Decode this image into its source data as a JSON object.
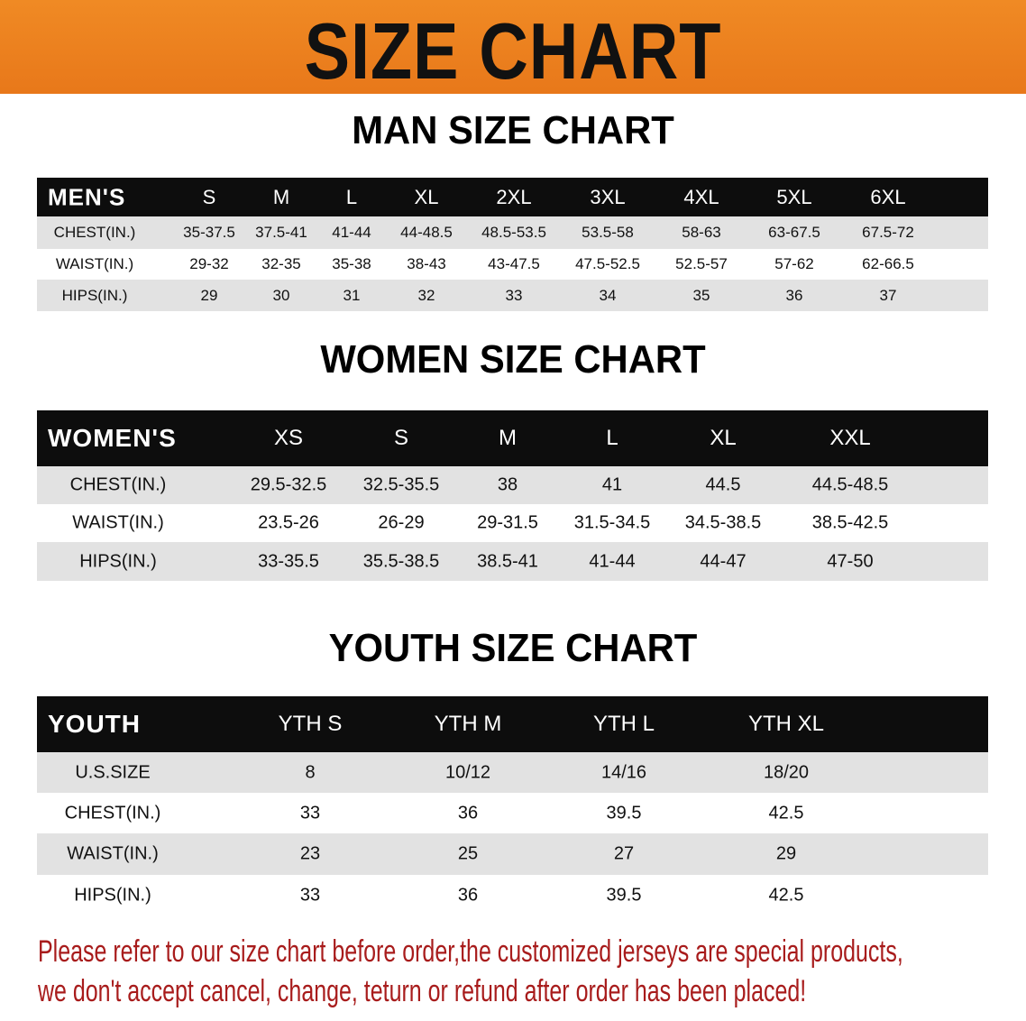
{
  "banner": {
    "title": "SIZE CHART",
    "color": "#ec801f"
  },
  "men": {
    "title": "MAN SIZE CHART",
    "header": [
      "MEN'S",
      "S",
      "M",
      "L",
      "XL",
      "2XL",
      "3XL",
      "4XL",
      "5XL",
      "6XL"
    ],
    "rows": [
      [
        "CHEST(IN.)",
        "35-37.5",
        "37.5-41",
        "41-44",
        "44-48.5",
        "48.5-53.5",
        "53.5-58",
        "58-63",
        "63-67.5",
        "67.5-72"
      ],
      [
        "WAIST(IN.)",
        "29-32",
        "32-35",
        "35-38",
        "38-43",
        "43-47.5",
        "47.5-52.5",
        "52.5-57",
        "57-62",
        "62-66.5"
      ],
      [
        "HIPS(IN.)",
        "29",
        "30",
        "31",
        "32",
        "33",
        "34",
        "35",
        "36",
        "37"
      ]
    ]
  },
  "women": {
    "title": "WOMEN SIZE CHART",
    "header": [
      "WOMEN'S",
      "XS",
      "S",
      "M",
      "L",
      "XL",
      "XXL"
    ],
    "rows": [
      [
        "CHEST(IN.)",
        "29.5-32.5",
        "32.5-35.5",
        "38",
        "41",
        "44.5",
        "44.5-48.5"
      ],
      [
        "WAIST(IN.)",
        "23.5-26",
        "26-29",
        "29-31.5",
        "31.5-34.5",
        "34.5-38.5",
        "38.5-42.5"
      ],
      [
        "HIPS(IN.)",
        "33-35.5",
        "35.5-38.5",
        "38.5-41",
        "41-44",
        "44-47",
        "47-50"
      ]
    ]
  },
  "youth": {
    "title": "YOUTH SIZE CHART",
    "header": [
      "YOUTH",
      "YTH S",
      "YTH M",
      "YTH L",
      "YTH XL"
    ],
    "rows": [
      [
        "U.S.SIZE",
        "8",
        "10/12",
        "14/16",
        "18/20"
      ],
      [
        "CHEST(IN.)",
        "33",
        "36",
        "39.5",
        "42.5"
      ],
      [
        "WAIST(IN.)",
        "23",
        "25",
        "27",
        "29"
      ],
      [
        "HIPS(IN.)",
        "33",
        "36",
        "39.5",
        "42.5"
      ]
    ]
  },
  "notice": {
    "line1": "Please refer to our size chart before order,the customized jerseys are special products,",
    "line2": "we don't accept cancel, change, teturn or refund after order has been placed!",
    "color": "#a81c1c"
  }
}
